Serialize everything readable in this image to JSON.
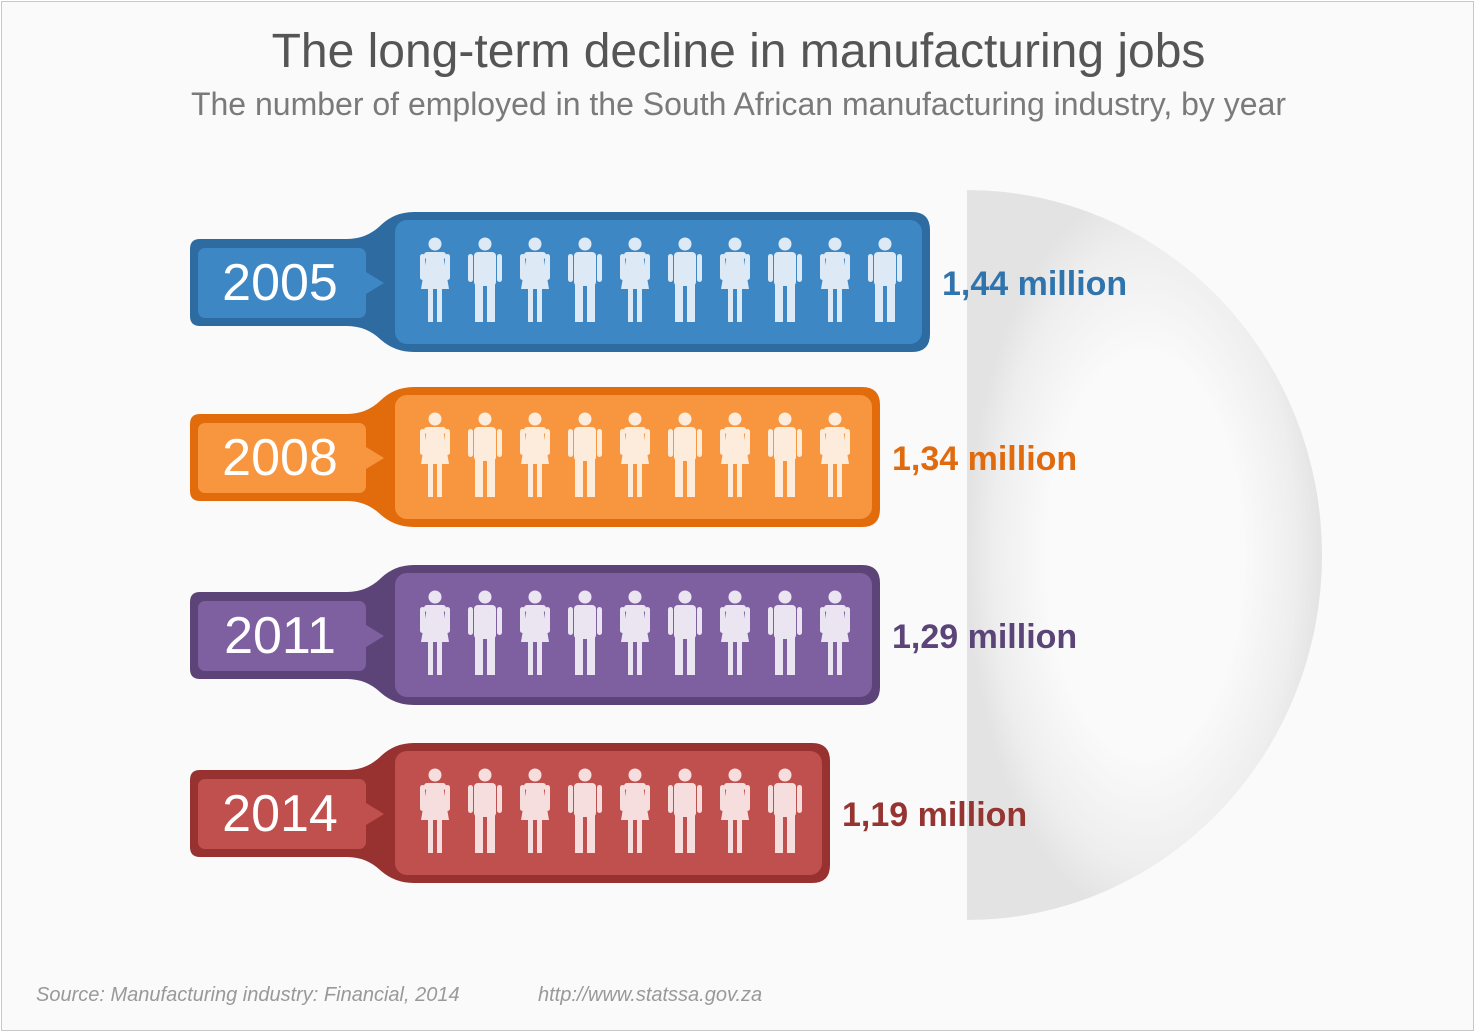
{
  "title": "The long-term decline in manufacturing jobs",
  "subtitle": "The number of employed in the South African manufacturing industry, by year",
  "source": {
    "citation": "Source: Manufacturing industry: Financial, 2014",
    "url": "http://www.statssa.gov.za"
  },
  "chart_data": {
    "type": "bar",
    "title": "The long-term decline in manufacturing jobs",
    "subtitle": "The number of employed in the South African manufacturing industry, by year",
    "unit": "million",
    "categories": [
      "2005",
      "2008",
      "2011",
      "2014"
    ],
    "values": [
      1.44,
      1.34,
      1.29,
      1.19
    ],
    "value_labels": [
      "1,44 million",
      "1,34 million",
      "1,29 million",
      "1,19 million"
    ],
    "figure_counts": [
      10,
      9,
      9,
      8
    ],
    "figure_pattern": [
      "female",
      "male"
    ],
    "colors": [
      {
        "main": "#3d87c5",
        "dark": "#2d6ba0",
        "label": "#2f74ad",
        "figure": "#dde9f5"
      },
      {
        "main": "#f7963f",
        "dark": "#e26c0b",
        "label": "#e06a0e",
        "figure": "#fdebdc"
      },
      {
        "main": "#7e60a0",
        "dark": "#5c4478",
        "label": "#5b4478",
        "figure": "#ebe5f2"
      },
      {
        "main": "#c0504d",
        "dark": "#983231",
        "label": "#963432",
        "figure": "#f6dede"
      }
    ]
  }
}
